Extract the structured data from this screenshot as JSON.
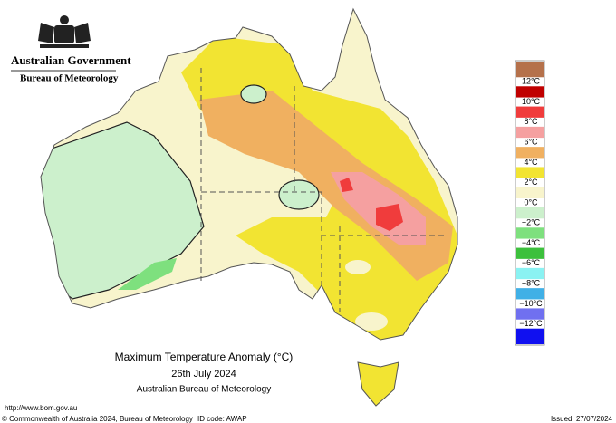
{
  "header": {
    "title": "Australian Government",
    "subtitle": "Bureau of Meteorology"
  },
  "map": {
    "title": "Maximum Temperature Anomaly (°C)",
    "date": "26th July 2024",
    "source": "Australian Bureau of Meteorology"
  },
  "legend": {
    "labels": [
      "12°C",
      "10°C",
      "8°C",
      "6°C",
      "4°C",
      "2°C",
      "0°C",
      "−2°C",
      "−4°C",
      "−6°C",
      "−8°C",
      "−10°C",
      "−12°C"
    ],
    "colors": [
      "#b5714b",
      "#c00000",
      "#f03c3c",
      "#f5a0a0",
      "#f0b060",
      "#f2e432",
      "#f8f4cc",
      "#ccf0cc",
      "#7ee07e",
      "#3cc03c",
      "#8af2f2",
      "#40b0e6",
      "#7070f0",
      "#1010f0"
    ]
  },
  "footer": {
    "url": "http://www.bom.gov.au",
    "copyright": "© Commonwealth of Australia 2024, Bureau of Meteorology",
    "id_code": "ID code: AWAP",
    "issued": "Issued: 27/07/2024"
  }
}
